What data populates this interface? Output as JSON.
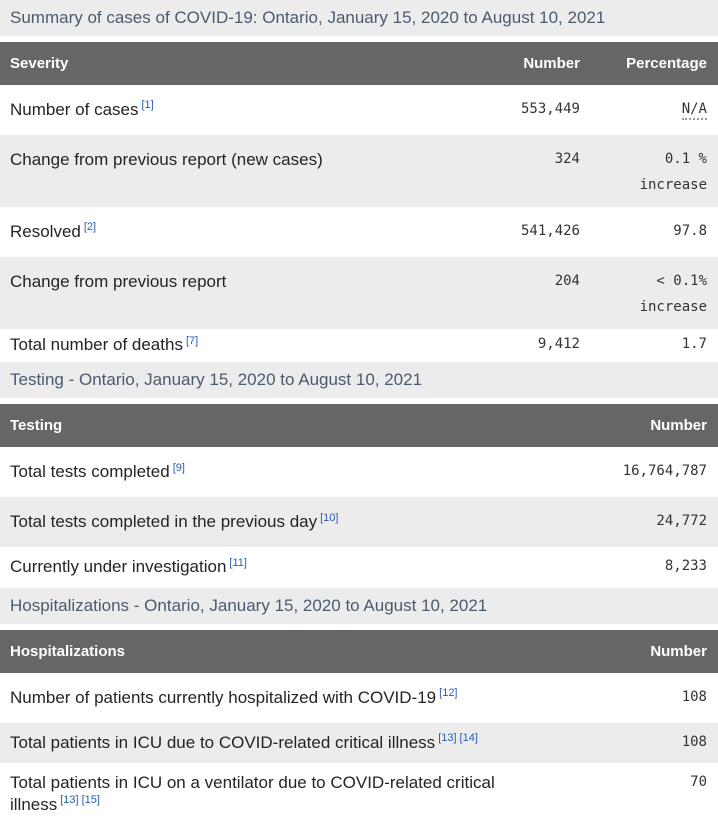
{
  "colors": {
    "caption_background": "#ececec",
    "caption_text": "#4a5b6e",
    "table_header_background": "#666666",
    "table_header_text": "#ffffff",
    "row_alt_background": "#ececec",
    "label_text": "#242424",
    "number_text": "#333333",
    "footnote_link_blue": "#2a5db0"
  },
  "sections": [
    {
      "caption": "Summary of cases of COVID-19: Ontario, January 15, 2020 to August 10, 2021",
      "headers": {
        "col1": "Severity",
        "col2": "Number",
        "col3": "Percentage"
      },
      "rows": [
        {
          "label": "Number of cases",
          "footnotes": [
            "[1]"
          ],
          "number": "553,449",
          "pct": "N/A"
        },
        {
          "label": "Change from previous report (new cases)",
          "footnotes": [],
          "number": "324",
          "pct": "0.1 %",
          "pct_note": "increase"
        },
        {
          "label": "Resolved",
          "footnotes": [
            "[2]"
          ],
          "number": "541,426",
          "pct": "97.8"
        },
        {
          "label": "Change from previous report",
          "footnotes": [],
          "number": "204",
          "pct": "< 0.1%",
          "pct_note": "increase"
        },
        {
          "label": "Total number of deaths",
          "footnotes": [
            "[7]"
          ],
          "number": "9,412",
          "pct": "1.7"
        }
      ]
    },
    {
      "caption": "Testing - Ontario, January 15, 2020 to August 10, 2021",
      "headers": {
        "col1": "Testing",
        "col2": "Number"
      },
      "rows": [
        {
          "label": "Total tests completed",
          "footnotes": [
            "[9]"
          ],
          "number": "16,764,787"
        },
        {
          "label": "Total tests completed in the previous day",
          "footnotes": [
            "[10]"
          ],
          "number": "24,772"
        },
        {
          "label": "Currently under investigation",
          "footnotes": [
            "[11]"
          ],
          "number": "8,233"
        }
      ]
    },
    {
      "caption": "Hospitalizations - Ontario, January 15, 2020 to August 10, 2021",
      "headers": {
        "col1": "Hospitalizations",
        "col2": "Number"
      },
      "rows": [
        {
          "label": "Number of patients currently hospitalized with COVID-19",
          "footnotes": [
            "[12]"
          ],
          "number": "108"
        },
        {
          "label": "Total patients in ICU due to COVID-related critical illness",
          "footnotes": [
            "[13]",
            "[14]"
          ],
          "number": "108"
        },
        {
          "label": "Total patients in ICU on a ventilator due to COVID-related critical illness",
          "footnotes": [
            "[13]",
            "[15]"
          ],
          "number": "70"
        }
      ]
    }
  ]
}
